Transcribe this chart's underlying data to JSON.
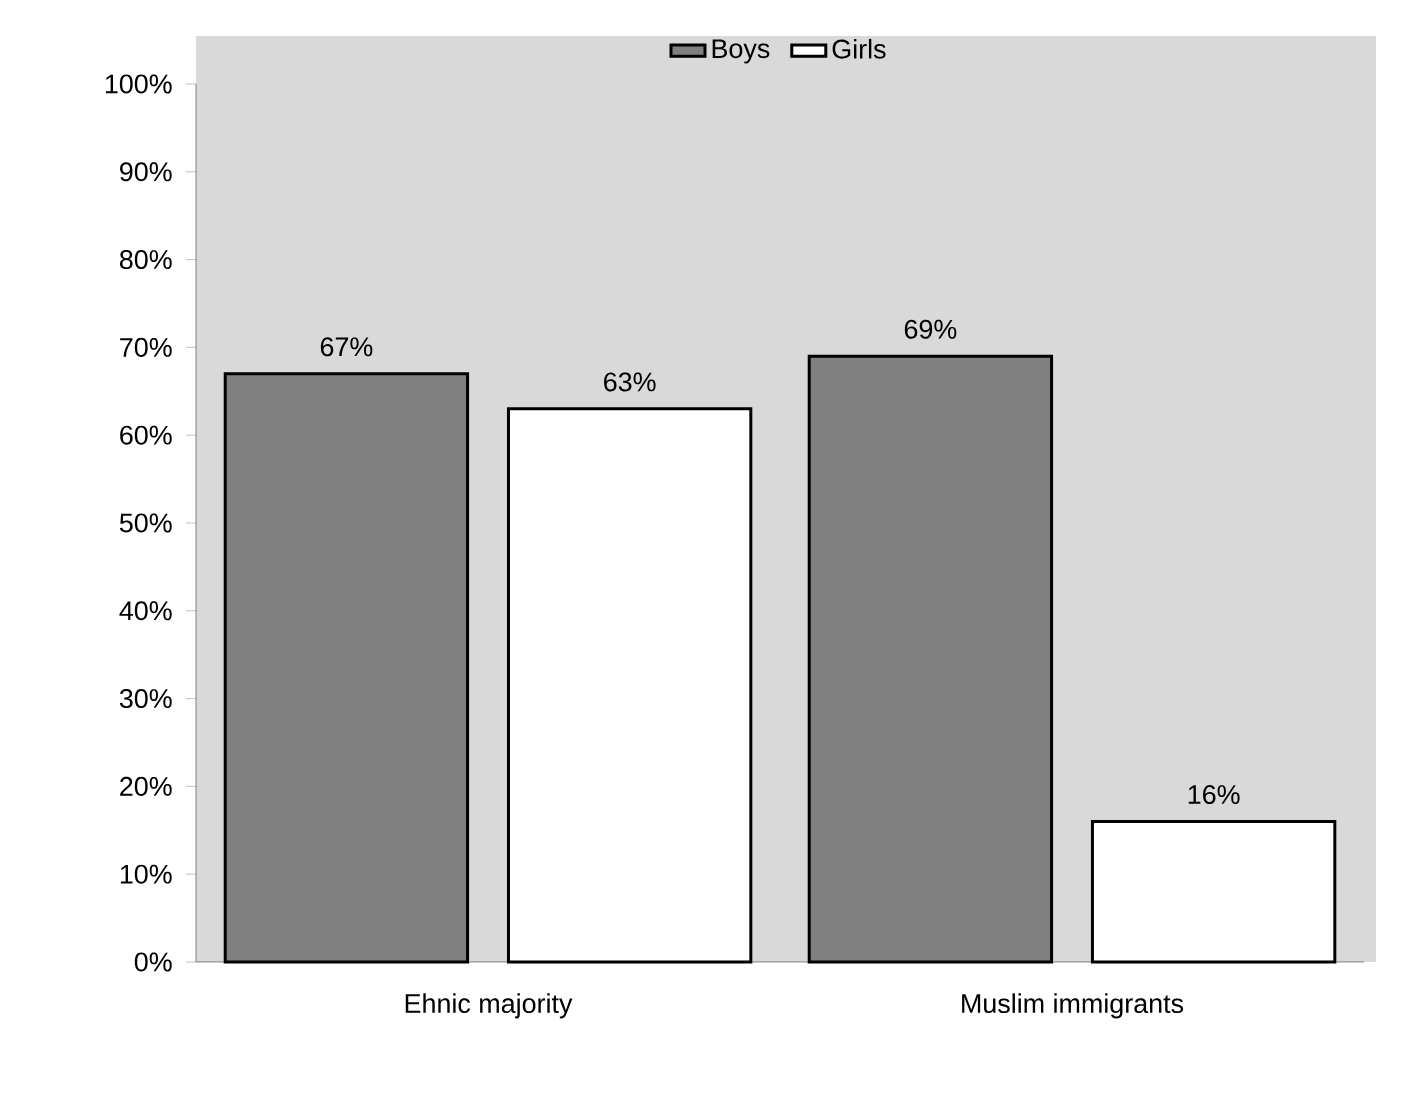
{
  "chart_data": {
    "type": "bar",
    "categories": [
      "Ehnic majority",
      "Muslim immigrants"
    ],
    "series": [
      {
        "name": "Boys",
        "color": "#808080",
        "values": [
          67,
          69
        ],
        "value_labels": [
          "67%",
          "69%"
        ]
      },
      {
        "name": "Girls",
        "color": "#ffffff",
        "values": [
          63,
          16
        ],
        "value_labels": [
          "63%",
          "16%"
        ]
      }
    ],
    "ylim": [
      0,
      100
    ],
    "yticks": [
      {
        "value": 0,
        "label": "0%"
      },
      {
        "value": 10,
        "label": "10%"
      },
      {
        "value": 20,
        "label": "20%"
      },
      {
        "value": 30,
        "label": "30%"
      },
      {
        "value": 40,
        "label": "40%"
      },
      {
        "value": 50,
        "label": "50%"
      },
      {
        "value": 60,
        "label": "60%"
      },
      {
        "value": 70,
        "label": "70%"
      },
      {
        "value": 80,
        "label": "80%"
      },
      {
        "value": 90,
        "label": "90%"
      },
      {
        "value": 100,
        "label": "100%"
      }
    ],
    "legend": "top"
  }
}
